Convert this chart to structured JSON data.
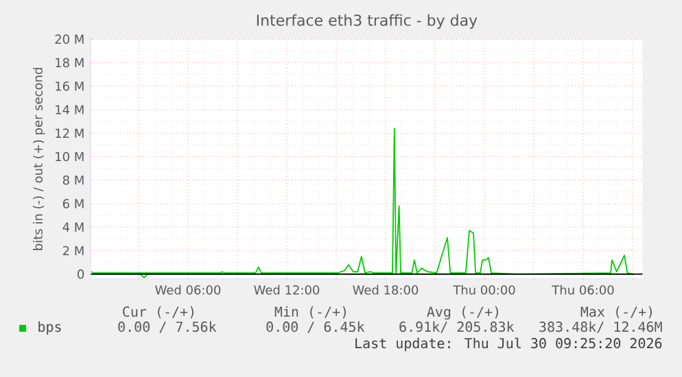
{
  "chart_data": {
    "type": "line",
    "title": "Interface eth3 traffic - by day",
    "ylabel": "bits in (-) / out (+) per second",
    "series": [
      {
        "color": "#00cc00",
        "x": [
          "2026-07-29T00:08",
          "2026-07-29T03:06",
          "2026-07-29T03:20",
          "2026-07-29T03:33",
          "2026-07-30T09:04"
        ],
        "values": [
          0,
          0,
          -0.3,
          0,
          0
        ]
      },
      {
        "name": "bps",
        "color": "#00cc00",
        "x": [
          "2026-07-29T00:08",
          "2026-07-29T00:18",
          "2026-07-29T08:00",
          "2026-07-29T08:04",
          "2026-07-29T08:12",
          "2026-07-29T10:06",
          "2026-07-29T10:17",
          "2026-07-29T10:27",
          "2026-07-29T15:06",
          "2026-07-29T15:17",
          "2026-07-29T15:30",
          "2026-07-29T15:45",
          "2026-07-29T16:02",
          "2026-07-29T16:18",
          "2026-07-29T16:32",
          "2026-07-29T16:45",
          "2026-07-29T17:05",
          "2026-07-29T17:18",
          "2026-07-29T18:25",
          "2026-07-29T18:32",
          "2026-07-29T18:38",
          "2026-07-29T18:49",
          "2026-07-29T18:55",
          "2026-07-29T19:36",
          "2026-07-29T19:45",
          "2026-07-29T19:55",
          "2026-07-29T20:11",
          "2026-07-29T20:34",
          "2026-07-29T21:06",
          "2026-07-29T21:25",
          "2026-07-29T21:45",
          "2026-07-29T21:56",
          "2026-07-29T22:52",
          "2026-07-29T23:05",
          "2026-07-29T23:20",
          "2026-07-29T23:28",
          "2026-07-29T23:45",
          "2026-07-29T23:53",
          "2026-07-30T00:05",
          "2026-07-30T00:15",
          "2026-07-30T00:25",
          "2026-07-30T01:58",
          "2026-07-30T07:40",
          "2026-07-30T07:45",
          "2026-07-30T08:02",
          "2026-07-30T08:30",
          "2026-07-30T08:41",
          "2026-07-30T09:04"
        ],
        "values": [
          0.2,
          0.1,
          0.1,
          0.2,
          0.1,
          0.1,
          0.6,
          0.1,
          0.1,
          0.2,
          0.3,
          0.8,
          0.2,
          0.2,
          1.5,
          0.1,
          0.2,
          0.1,
          0.1,
          12.4,
          0,
          5.8,
          0.1,
          0.1,
          1.2,
          0.1,
          0.5,
          0.2,
          0.1,
          1.6,
          3.1,
          0.1,
          0.1,
          3.7,
          3.5,
          0.1,
          0.1,
          1.2,
          1.2,
          1.4,
          0.1,
          0,
          0.1,
          1.2,
          0.2,
          1.6,
          0.1,
          0
        ]
      }
    ],
    "xlim": [
      "2026-07-29T00:06",
      "2026-07-30T09:36"
    ],
    "xticks": [
      {
        "value": "2026-07-29T03:00",
        "label": null
      },
      {
        "value": "2026-07-29T06:00",
        "label": "Wed 06:00"
      },
      {
        "value": "2026-07-29T09:00",
        "label": null
      },
      {
        "value": "2026-07-29T12:00",
        "label": "Wed 12:00"
      },
      {
        "value": "2026-07-29T15:00",
        "label": null
      },
      {
        "value": "2026-07-29T18:00",
        "label": "Wed 18:00"
      },
      {
        "value": "2026-07-29T21:00",
        "label": null
      },
      {
        "value": "2026-07-30T00:00",
        "label": "Thu 00:00"
      },
      {
        "value": "2026-07-30T03:00",
        "label": null
      },
      {
        "value": "2026-07-30T06:00",
        "label": "Thu 06:00"
      },
      {
        "value": "2026-07-30T09:00",
        "label": null
      }
    ],
    "ylim": [
      -0.4,
      20
    ],
    "yticks": [
      0,
      {
        "value": 2,
        "label": "2 M"
      },
      {
        "value": 4,
        "label": "4 M"
      },
      {
        "value": 6,
        "label": "6 M"
      },
      {
        "value": 8,
        "label": "8 M"
      },
      {
        "value": 10,
        "label": "10 M"
      },
      {
        "value": 12,
        "label": "12 M"
      },
      {
        "value": 14,
        "label": "14 M"
      },
      {
        "value": 16,
        "label": "16 M"
      },
      {
        "value": 18,
        "label": "18 M"
      },
      {
        "value": 20,
        "label": "20 M"
      }
    ],
    "grid": true,
    "legend": "bottom left",
    "annotations": [
      "Cur (-/+)",
      "Min (-/+)",
      "Avg (-/+)",
      "Max (-/+)",
      "0.00 / 7.56k",
      "0.00 / 6.45k",
      "6.91k/ 205.83k",
      "383.48k/ 12.46M",
      "Last update: Thu Jul 30 09:25:20 2026"
    ]
  }
}
